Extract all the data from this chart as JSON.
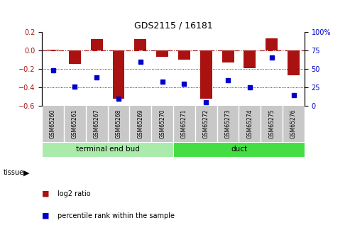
{
  "title": "GDS2115 / 16181",
  "samples": [
    "GSM65260",
    "GSM65261",
    "GSM65267",
    "GSM65268",
    "GSM65269",
    "GSM65270",
    "GSM65271",
    "GSM65272",
    "GSM65273",
    "GSM65274",
    "GSM65275",
    "GSM65276"
  ],
  "log2_ratio": [
    0.01,
    -0.15,
    0.12,
    -0.52,
    0.12,
    -0.07,
    -0.1,
    -0.52,
    -0.13,
    -0.19,
    0.13,
    -0.27
  ],
  "percentile_rank": [
    48,
    26,
    38,
    10,
    60,
    33,
    30,
    5,
    35,
    25,
    65,
    14
  ],
  "tissue_groups": [
    {
      "label": "terminal end bud",
      "start": 0,
      "end": 6,
      "color": "#AAEAAA"
    },
    {
      "label": "duct",
      "start": 6,
      "end": 12,
      "color": "#44DD44"
    }
  ],
  "bar_color": "#AA1111",
  "dot_color": "#0000CC",
  "ylim_left": [
    -0.6,
    0.2
  ],
  "ylim_right": [
    0,
    100
  ],
  "yticks_left": [
    -0.6,
    -0.4,
    -0.2,
    0.0,
    0.2
  ],
  "yticks_right": [
    0,
    25,
    50,
    75,
    100
  ],
  "hline_y": 0.0,
  "dotted_lines": [
    -0.2,
    -0.4
  ],
  "background_color": "#ffffff",
  "label_bg_color": "#C8C8C8",
  "legend_log2_label": "log2 ratio",
  "legend_pct_label": "percentile rank within the sample",
  "tissue_label": "tissue",
  "bar_width": 0.55
}
